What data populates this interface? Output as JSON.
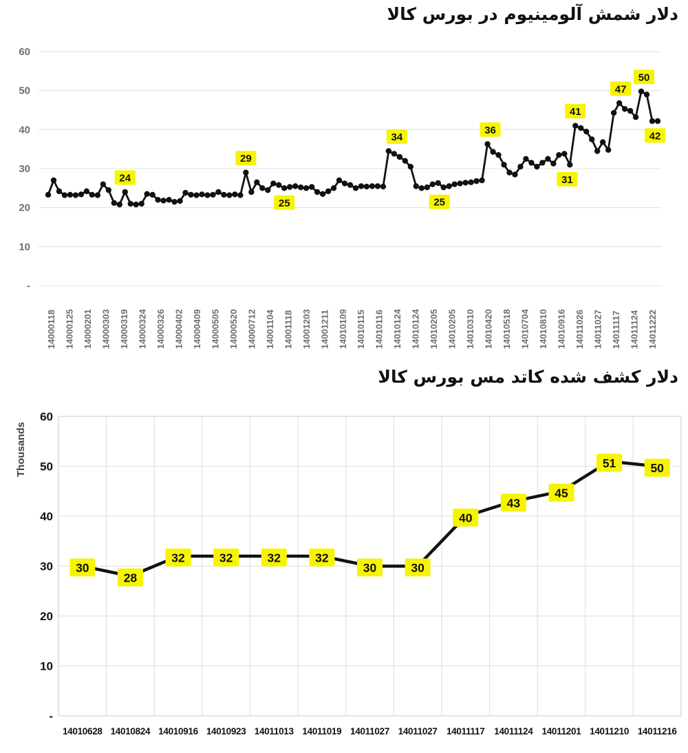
{
  "chart_data": [
    {
      "type": "line",
      "title": "دلار شمش آلومینیوم در بورس کالا",
      "ylabel": "",
      "ylim": [
        0,
        60
      ],
      "ytick_values": [
        0,
        10,
        20,
        30,
        40,
        50,
        60
      ],
      "ytick_labels": [
        "-",
        "10",
        "20",
        "30",
        "40",
        "50",
        "60"
      ],
      "grid": "horizontal",
      "legend": "none",
      "x_tick_labels": [
        "14000118",
        "14000125",
        "14000201",
        "14000303",
        "14000319",
        "14000324",
        "14000326",
        "14000402",
        "14000409",
        "14000505",
        "14000520",
        "14000712",
        "14001104",
        "14001118",
        "14001203",
        "14001211",
        "14010109",
        "14010115",
        "14010116",
        "14010124",
        "14010124",
        "14010205",
        "14010205",
        "14010310",
        "14010420",
        "14010518",
        "14010704",
        "14010810",
        "14010916",
        "14011026",
        "14011027",
        "14011117",
        "14011124",
        "14011222"
      ],
      "values": [
        23.3,
        27,
        24.2,
        23.2,
        23.3,
        23.2,
        23.4,
        24.2,
        23.3,
        23.2,
        26,
        24.5,
        21.2,
        20.8,
        24,
        21,
        20.8,
        21,
        23.5,
        23.3,
        22,
        21.8,
        22,
        21.5,
        21.7,
        23.8,
        23.3,
        23.2,
        23.4,
        23.2,
        23.3,
        24,
        23.3,
        23.2,
        23.4,
        23.2,
        29,
        24,
        26.5,
        25,
        24.5,
        26.2,
        25.8,
        25,
        25.3,
        25.5,
        25.2,
        25,
        25.3,
        24,
        23.5,
        24.2,
        25,
        27,
        26.2,
        25.8,
        25,
        25.5,
        25.4,
        25.5,
        25.5,
        25.4,
        34.5,
        33.8,
        33,
        32,
        30.5,
        25.5,
        25,
        25.2,
        26,
        26.3,
        25.2,
        25.5,
        26,
        26.2,
        26.4,
        26.5,
        26.8,
        27,
        36.3,
        34.3,
        33.5,
        31,
        29,
        28.5,
        30.5,
        32.5,
        31.5,
        30.5,
        31.5,
        32.5,
        31.3,
        33.5,
        33.8,
        31,
        41,
        40.4,
        39.5,
        37.5,
        34.5,
        36.8,
        34.8,
        44.3,
        46.8,
        45.3,
        44.8,
        43.2,
        49.8,
        49,
        42.2,
        42.2
      ],
      "point_labels": [
        {
          "index": 14,
          "text": "24",
          "place": "above",
          "dx": 0
        },
        {
          "index": 36,
          "text": "29",
          "place": "above",
          "dx": 0
        },
        {
          "index": 43,
          "text": "25",
          "place": "below",
          "dx": 0
        },
        {
          "index": 62,
          "text": "34",
          "place": "above",
          "dx": 12
        },
        {
          "index": 72,
          "text": "25",
          "place": "below",
          "dx": -6
        },
        {
          "index": 80,
          "text": "36",
          "place": "above",
          "dx": 4
        },
        {
          "index": 95,
          "text": "31",
          "place": "below",
          "dx": -4
        },
        {
          "index": 96,
          "text": "41",
          "place": "above",
          "dx": 0
        },
        {
          "index": 104,
          "text": "47",
          "place": "above",
          "dx": 2
        },
        {
          "index": 108,
          "text": "50",
          "place": "above",
          "dx": 4
        },
        {
          "index": 111,
          "text": "42",
          "place": "below",
          "dx": -4
        }
      ],
      "colors": {
        "line": "#111111",
        "marker": "#111111",
        "label_bg": "#F7F400",
        "label_text": "#111111",
        "grid": "#E6E6E6",
        "axis_text": "#6E6E6E"
      }
    },
    {
      "type": "line",
      "title": "دلار  کشف شده کاتد مس بورس کالا",
      "ylabel": "Thousands",
      "ylim": [
        0,
        60
      ],
      "ytick_values": [
        0,
        10,
        20,
        30,
        40,
        50,
        60
      ],
      "ytick_labels": [
        "-",
        "10",
        "20",
        "30",
        "40",
        "50",
        "60"
      ],
      "grid": "both",
      "legend": "none",
      "categories": [
        "14010628",
        "14010824",
        "14010916",
        "14010923",
        "14011013",
        "14011019",
        "14011027",
        "14011027",
        "14011117",
        "14011124",
        "14011201",
        "14011210",
        "14011216"
      ],
      "values": [
        30,
        28,
        32,
        32,
        32,
        32,
        30,
        30,
        40,
        43,
        45,
        51,
        50
      ],
      "label_all_points": true,
      "colors": {
        "line": "#111111",
        "marker": "#111111",
        "label_bg": "#F7F400",
        "label_text": "#111111",
        "grid": "#E3E3E3",
        "border": "#D9D9D9",
        "axis_text": "#111111",
        "ylabel_color": "#3F3F3F"
      }
    }
  ]
}
